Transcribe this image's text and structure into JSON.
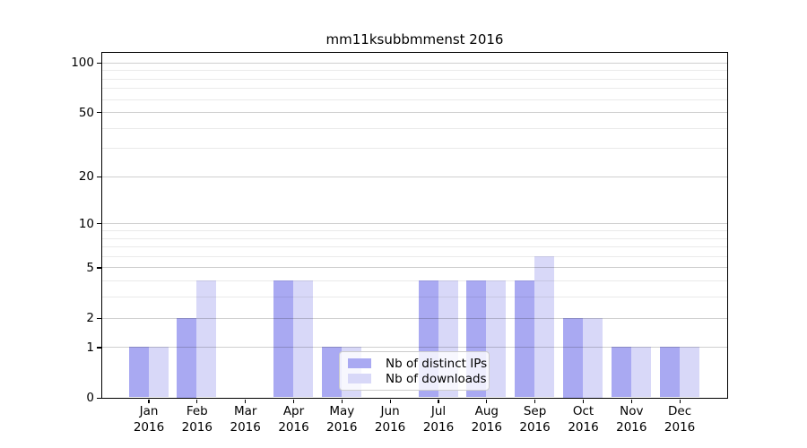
{
  "chart_data": {
    "type": "bar",
    "title": "mm11ksubbmmenst 2016",
    "categories": [
      "Jan",
      "Feb",
      "Mar",
      "Apr",
      "May",
      "Jun",
      "Jul",
      "Aug",
      "Sep",
      "Oct",
      "Nov",
      "Dec"
    ],
    "year_label": "2016",
    "series": [
      {
        "name": "Nb of distinct IPs",
        "color": "#a9a9f2",
        "values": [
          1,
          2,
          0,
          4,
          1,
          0,
          4,
          4,
          4,
          2,
          1,
          1
        ]
      },
      {
        "name": "Nb of downloads",
        "color": "#d8d8f8",
        "values": [
          1,
          4,
          0,
          4,
          1,
          0,
          4,
          4,
          6,
          2,
          1,
          1
        ]
      }
    ],
    "yscale": "log1p",
    "ylim": [
      0,
      115
    ],
    "yticks": [
      0,
      1,
      2,
      5,
      10,
      20,
      50,
      100
    ],
    "minor_gridlines": [
      3,
      4,
      6,
      7,
      8,
      9,
      30,
      40,
      60,
      70,
      80,
      90
    ],
    "grid": true,
    "legend_position": "lower-center",
    "colors": {
      "distinct_ips": "#a9a9f2",
      "downloads": "#d8d8f8",
      "grid_major": "#cdcdcd",
      "grid_minor": "#eaeaea",
      "spine": "#000000",
      "legend_border": "#cccccc"
    }
  }
}
